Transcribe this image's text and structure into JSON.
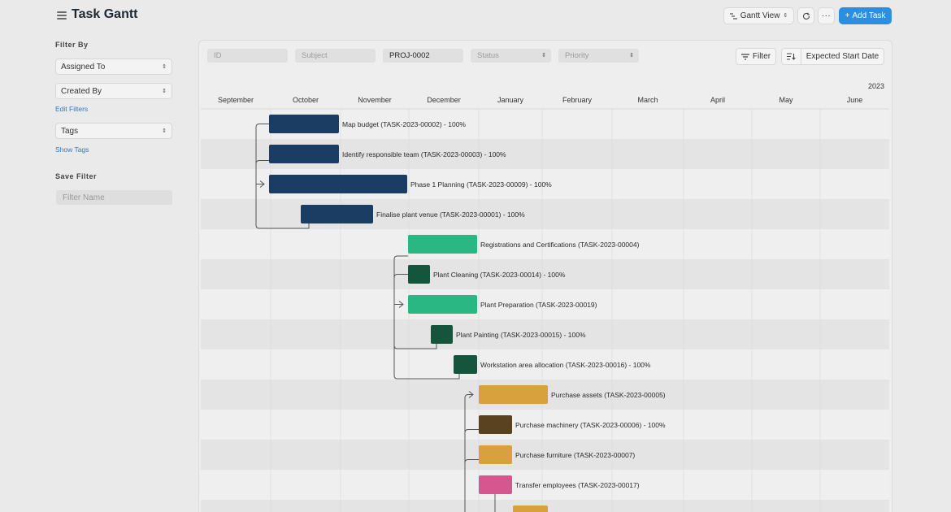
{
  "header": {
    "title": "Task Gantt",
    "view_label": "Gantt View",
    "add_label": "Add Task"
  },
  "sidebar": {
    "filter_by_label": "Filter By",
    "assigned_to": "Assigned To",
    "created_by": "Created By",
    "edit_filters": "Edit Filters",
    "tags": "Tags",
    "show_tags": "Show Tags",
    "save_filter_label": "Save Filter",
    "filter_name_placeholder": "Filter Name"
  },
  "filters": {
    "id_placeholder": "ID",
    "subject_placeholder": "Subject",
    "project_value": "PROJ-0002",
    "status_placeholder": "Status",
    "priority_placeholder": "Priority",
    "filter_label": "Filter",
    "sort_label": "Expected Start Date"
  },
  "gantt": {
    "year_label": "2023",
    "months": [
      "September",
      "October",
      "November",
      "December",
      "January",
      "February",
      "March",
      "April",
      "May",
      "June"
    ],
    "tasks": [
      {
        "label": "Map budget (TASK-2023-00002) - 100%",
        "color": "#1b3d63"
      },
      {
        "label": "Identify responsible team (TASK-2023-00003) - 100%",
        "color": "#1b3d63"
      },
      {
        "label": "Phase 1 Planning (TASK-2023-00009) - 100%",
        "color": "#1b3d63"
      },
      {
        "label": "Finalise plant venue (TASK-2023-00001) - 100%",
        "color": "#1b3d63"
      },
      {
        "label": "Registrations and Certifications (TASK-2023-00004)",
        "color": "#2bb784"
      },
      {
        "label": "Plant Cleaning (TASK-2023-00014) - 100%",
        "color": "#15553e"
      },
      {
        "label": "Plant Preparation (TASK-2023-00019)",
        "color": "#2bb784"
      },
      {
        "label": "Plant Painting (TASK-2023-00015) - 100%",
        "color": "#15553e"
      },
      {
        "label": "Workstation area allocation (TASK-2023-00016) - 100%",
        "color": "#15553e"
      },
      {
        "label": "Purchase assets (TASK-2023-00005)",
        "color": "#d9a13e"
      },
      {
        "label": "Purchase machinery (TASK-2023-00006) - 100%",
        "color": "#5a4220"
      },
      {
        "label": "Purchase furniture (TASK-2023-00007)",
        "color": "#d9a13e"
      },
      {
        "label": "Transfer employees (TASK-2023-00017)",
        "color": "#d6578f"
      },
      {
        "label": "",
        "color": "#d9a13e"
      }
    ]
  }
}
